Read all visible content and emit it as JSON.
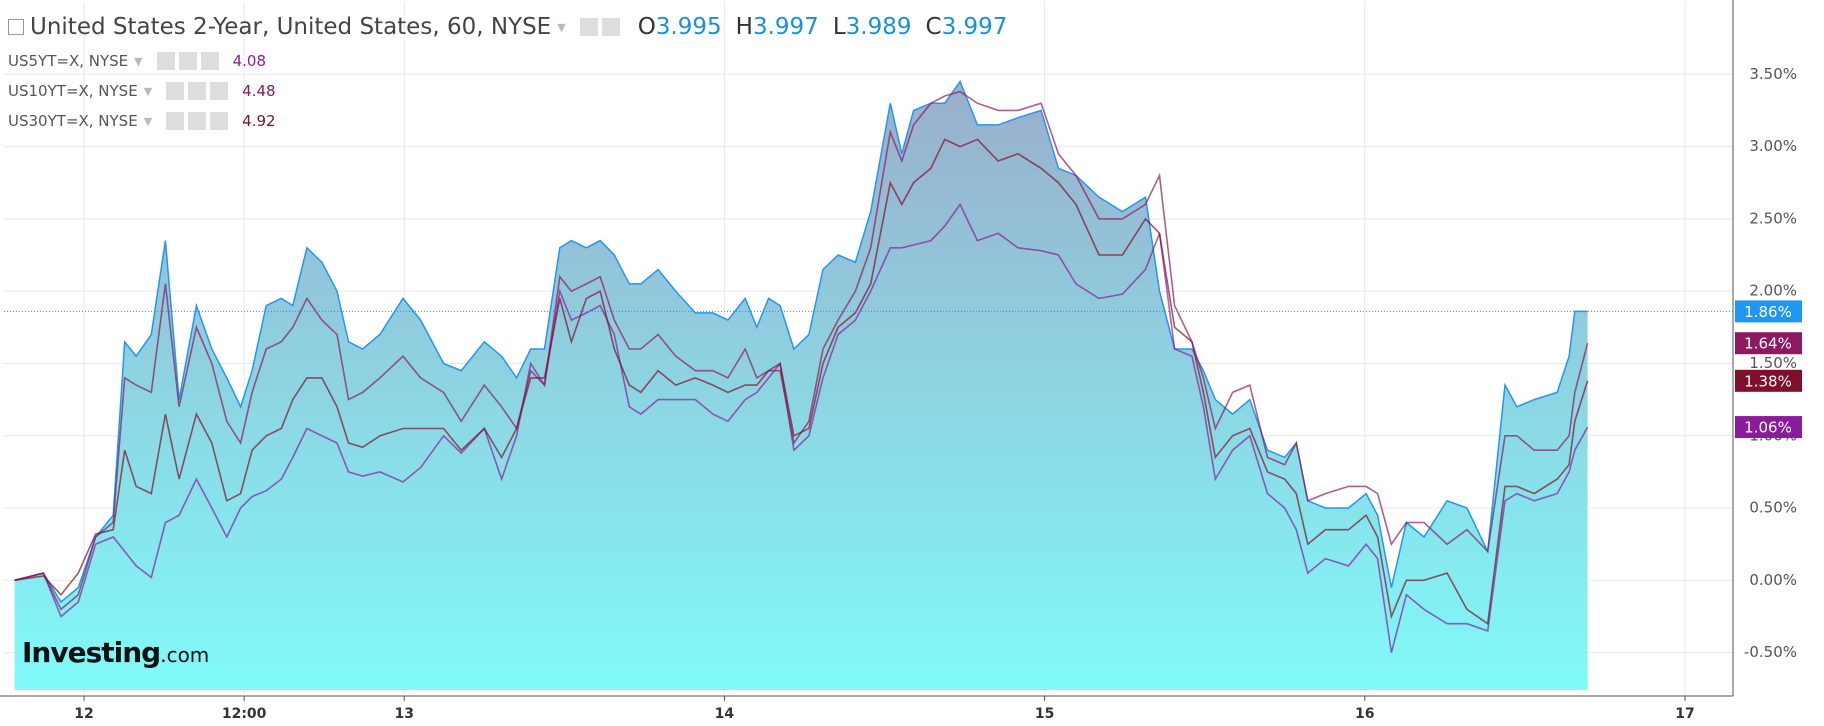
{
  "chart_data": {
    "type": "area",
    "xlim": [
      11.75,
      17.15
    ],
    "ylim": [
      -0.8,
      4.0
    ],
    "xticks": [
      {
        "value": 12,
        "label": "12"
      },
      {
        "value": 12.5,
        "label": "12:00"
      },
      {
        "value": 13,
        "label": "13"
      },
      {
        "value": 14,
        "label": "14"
      },
      {
        "value": 15,
        "label": "15"
      },
      {
        "value": 16,
        "label": "16"
      },
      {
        "value": 17,
        "label": "17"
      }
    ],
    "yticks": [
      {
        "value": -0.5,
        "label": "-0.50%"
      },
      {
        "value": 0,
        "label": "0.00%"
      },
      {
        "value": 0.5,
        "label": "0.50%"
      },
      {
        "value": 1,
        "label": "1.00%"
      },
      {
        "value": 1.5,
        "label": "1.50%"
      },
      {
        "value": 2,
        "label": "2.00%"
      },
      {
        "value": 2.5,
        "label": "2.50%"
      },
      {
        "value": 3,
        "label": "3.00%"
      },
      {
        "value": 3.5,
        "label": "3.50%"
      }
    ],
    "grid": true,
    "logo": {
      "brand": "Investing",
      "suffix": ".com"
    },
    "x": [
      11.783,
      11.873,
      11.928,
      11.982,
      12.036,
      12.091,
      12.127,
      12.163,
      12.21,
      12.254,
      12.297,
      12.351,
      12.399,
      12.446,
      12.489,
      12.525,
      12.569,
      12.616,
      12.652,
      12.696,
      12.743,
      12.79,
      12.826,
      12.87,
      12.924,
      12.996,
      13.051,
      13.123,
      13.178,
      13.25,
      13.304,
      13.351,
      13.395,
      13.438,
      13.486,
      13.522,
      13.569,
      13.612,
      13.656,
      13.703,
      13.739,
      13.793,
      13.848,
      13.909,
      13.964,
      14.011,
      14.065,
      14.101,
      14.138,
      14.174,
      14.217,
      14.264,
      14.308,
      14.355,
      14.409,
      14.457,
      14.518,
      14.554,
      14.591,
      14.645,
      14.688,
      14.736,
      14.79,
      14.855,
      14.917,
      14.989,
      15.043,
      15.098,
      15.17,
      15.243,
      15.315,
      15.359,
      15.406,
      15.46,
      15.496,
      15.533,
      15.587,
      15.641,
      15.696,
      15.75,
      15.786,
      15.822,
      15.877,
      15.949,
      16.004,
      16.04,
      16.083,
      16.13,
      16.185,
      16.257,
      16.319,
      16.384,
      16.438,
      16.475,
      16.529,
      16.601,
      16.638,
      16.656,
      16.696
    ],
    "series": [
      {
        "name": "United States 2-Year, United States, 60, NYSE",
        "type": "area",
        "color": "#2196f3",
        "ohlc": [
          {
            "label": "O",
            "value": 3.995
          },
          {
            "label": "H",
            "value": 3.997
          },
          {
            "label": "L",
            "value": 3.989
          },
          {
            "label": "C",
            "value": 3.997
          }
        ],
        "last_label": "1.86%",
        "values": [
          0.0,
          0.05,
          -0.15,
          -0.05,
          0.3,
          0.45,
          1.65,
          1.55,
          1.7,
          2.35,
          1.25,
          1.9,
          1.6,
          1.4,
          1.2,
          1.45,
          1.9,
          1.95,
          1.9,
          2.3,
          2.2,
          2.0,
          1.65,
          1.6,
          1.7,
          1.95,
          1.8,
          1.5,
          1.45,
          1.65,
          1.55,
          1.4,
          1.6,
          1.6,
          2.3,
          2.35,
          2.3,
          2.35,
          2.25,
          2.05,
          2.05,
          2.15,
          2.0,
          1.85,
          1.85,
          1.8,
          1.95,
          1.75,
          1.95,
          1.9,
          1.6,
          1.7,
          2.15,
          2.25,
          2.2,
          2.55,
          3.3,
          2.95,
          3.25,
          3.3,
          3.3,
          3.45,
          3.15,
          3.15,
          3.2,
          3.25,
          2.85,
          2.8,
          2.65,
          2.55,
          2.65,
          2.0,
          1.6,
          1.6,
          1.45,
          1.25,
          1.15,
          1.25,
          0.9,
          0.85,
          0.95,
          0.55,
          0.5,
          0.5,
          0.6,
          0.45,
          -0.05,
          0.4,
          0.3,
          0.55,
          0.5,
          0.2,
          1.35,
          1.2,
          1.25,
          1.3,
          1.55,
          1.86,
          1.86
        ]
      },
      {
        "name": "US5YT=X, NYSE",
        "type": "line",
        "color": "#8a1c9c",
        "quote": 4.08,
        "last_label": "1.06%",
        "values": [
          0.0,
          0.05,
          -0.25,
          -0.15,
          0.25,
          0.3,
          0.2,
          0.1,
          0.02,
          0.4,
          0.45,
          0.7,
          0.5,
          0.3,
          0.5,
          0.58,
          0.62,
          0.7,
          0.85,
          1.05,
          1.0,
          0.95,
          0.75,
          0.72,
          0.75,
          0.68,
          0.78,
          1.0,
          0.88,
          1.05,
          0.7,
          1.0,
          1.5,
          1.35,
          2.0,
          1.8,
          1.85,
          1.9,
          1.7,
          1.2,
          1.15,
          1.25,
          1.25,
          1.25,
          1.15,
          1.1,
          1.25,
          1.3,
          1.4,
          1.5,
          0.9,
          1.0,
          1.4,
          1.7,
          1.8,
          2.0,
          2.3,
          2.3,
          2.32,
          2.35,
          2.45,
          2.6,
          2.35,
          2.4,
          2.3,
          2.28,
          2.25,
          2.05,
          1.95,
          1.98,
          2.15,
          2.4,
          1.6,
          1.55,
          1.2,
          0.7,
          0.9,
          1.0,
          0.6,
          0.5,
          0.35,
          0.05,
          0.15,
          0.1,
          0.25,
          0.15,
          -0.5,
          -0.1,
          -0.2,
          -0.3,
          -0.3,
          -0.35,
          0.55,
          0.6,
          0.55,
          0.6,
          0.75,
          0.9,
          1.06
        ]
      },
      {
        "name": "US10YT=X, NYSE",
        "type": "line",
        "color": "#8b1a5e",
        "quote": 4.48,
        "last_label": "1.64%",
        "values": [
          0.0,
          0.05,
          -0.2,
          -0.1,
          0.3,
          0.4,
          1.4,
          1.35,
          1.3,
          2.05,
          1.2,
          1.75,
          1.5,
          1.1,
          0.95,
          1.3,
          1.6,
          1.65,
          1.75,
          1.95,
          1.8,
          1.7,
          1.25,
          1.3,
          1.4,
          1.55,
          1.4,
          1.3,
          1.1,
          1.35,
          1.2,
          1.05,
          1.45,
          1.35,
          2.1,
          2.0,
          2.05,
          2.1,
          1.8,
          1.6,
          1.6,
          1.7,
          1.55,
          1.45,
          1.45,
          1.4,
          1.6,
          1.4,
          1.45,
          1.45,
          0.95,
          1.1,
          1.6,
          1.8,
          2.0,
          2.3,
          3.1,
          2.9,
          3.15,
          3.3,
          3.35,
          3.38,
          3.3,
          3.25,
          3.25,
          3.3,
          2.95,
          2.8,
          2.5,
          2.5,
          2.6,
          2.8,
          1.9,
          1.65,
          1.4,
          1.05,
          1.3,
          1.35,
          0.85,
          0.8,
          0.95,
          0.55,
          0.6,
          0.65,
          0.65,
          0.6,
          0.25,
          0.4,
          0.4,
          0.25,
          0.35,
          0.2,
          1.0,
          1.0,
          0.9,
          0.9,
          1.0,
          1.3,
          1.64
        ]
      },
      {
        "name": "US30YT=X, NYSE",
        "type": "line",
        "color": "#7f0f2a",
        "quote": 4.92,
        "last_label": "1.38%",
        "values": [
          0.0,
          0.03,
          -0.1,
          0.05,
          0.32,
          0.35,
          0.9,
          0.65,
          0.6,
          1.15,
          0.7,
          1.15,
          0.95,
          0.55,
          0.6,
          0.9,
          1.0,
          1.05,
          1.25,
          1.4,
          1.4,
          1.2,
          0.95,
          0.92,
          1.0,
          1.05,
          1.05,
          1.05,
          0.9,
          1.05,
          0.85,
          1.05,
          1.4,
          1.4,
          1.95,
          1.65,
          1.95,
          2.0,
          1.6,
          1.35,
          1.3,
          1.45,
          1.35,
          1.4,
          1.35,
          1.3,
          1.35,
          1.35,
          1.45,
          1.5,
          1.0,
          1.05,
          1.5,
          1.75,
          1.85,
          2.05,
          2.75,
          2.6,
          2.75,
          2.85,
          3.05,
          3.0,
          3.05,
          2.9,
          2.95,
          2.85,
          2.75,
          2.6,
          2.25,
          2.25,
          2.5,
          2.4,
          1.75,
          1.65,
          1.3,
          0.85,
          1.0,
          1.05,
          0.75,
          0.7,
          0.6,
          0.25,
          0.35,
          0.35,
          0.45,
          0.3,
          -0.25,
          0.0,
          0.0,
          0.05,
          -0.2,
          -0.3,
          0.65,
          0.65,
          0.6,
          0.7,
          0.8,
          1.1,
          1.38
        ]
      }
    ]
  }
}
